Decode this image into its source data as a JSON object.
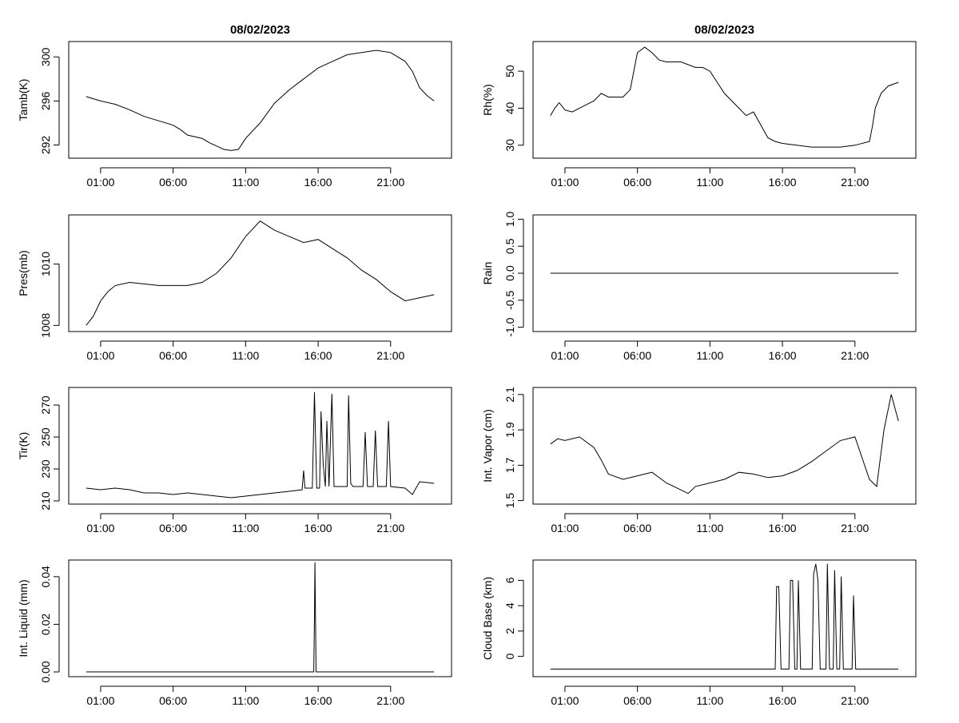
{
  "figure_title": "08/02/2023",
  "chart_data": [
    {
      "type": "line",
      "title": "08/02/2023",
      "xlabel": "",
      "ylabel": "Tamb(K)",
      "xlim": [
        -1.2,
        25.2
      ],
      "xticks": [
        1,
        6,
        11,
        16,
        21
      ],
      "xtick_labels": [
        "01:00",
        "06:00",
        "11:00",
        "16:00",
        "21:00"
      ],
      "ylim": [
        290.8,
        301.4
      ],
      "yticks": [
        292,
        296,
        300
      ],
      "ytick_labels": [
        "292",
        "296",
        "300"
      ],
      "series": [
        {
          "name": "Tamb",
          "x": [
            0,
            0.5,
            1,
            2,
            3,
            4,
            5,
            6,
            6.5,
            7,
            8,
            8.5,
            9,
            9.5,
            10,
            10.5,
            11,
            12,
            13,
            14,
            15,
            16,
            17,
            18,
            19,
            20,
            21,
            22,
            22.5,
            23,
            23.5,
            24
          ],
          "y": [
            296.4,
            296.2,
            296.0,
            295.7,
            295.2,
            294.6,
            294.2,
            293.8,
            293.4,
            292.9,
            292.6,
            292.2,
            291.9,
            291.6,
            291.5,
            291.6,
            292.6,
            294.0,
            295.8,
            297.0,
            298.0,
            299.0,
            299.6,
            300.2,
            300.4,
            300.6,
            300.4,
            299.6,
            298.7,
            297.2,
            296.5,
            296.0
          ]
        }
      ]
    },
    {
      "type": "line",
      "title": "08/02/2023",
      "xlabel": "",
      "ylabel": "Rh(%)",
      "xlim": [
        -1.2,
        25.2
      ],
      "xticks": [
        1,
        6,
        11,
        16,
        21
      ],
      "xtick_labels": [
        "01:00",
        "06:00",
        "11:00",
        "16:00",
        "21:00"
      ],
      "ylim": [
        26.5,
        58
      ],
      "yticks": [
        30,
        40,
        50
      ],
      "ytick_labels": [
        "30",
        "40",
        "50"
      ],
      "series": [
        {
          "name": "Rh",
          "x": [
            0,
            0.3,
            0.6,
            1,
            1.5,
            2,
            3,
            3.5,
            4,
            5,
            5.5,
            6,
            6.5,
            7,
            7.5,
            8,
            9,
            10,
            10.5,
            11,
            11.5,
            12,
            13,
            13.5,
            14,
            15,
            15.5,
            16,
            17,
            18,
            19,
            20,
            21,
            22,
            22.2,
            22.4,
            22.8,
            23.3,
            24
          ],
          "y": [
            38,
            40,
            41.5,
            39.5,
            39,
            40,
            42,
            44,
            43,
            43,
            45,
            55,
            56.5,
            55,
            53,
            52.5,
            52.5,
            51,
            51,
            50,
            47,
            44,
            40,
            38,
            39,
            32,
            31,
            30.5,
            30,
            29.5,
            29.5,
            29.5,
            30,
            31,
            35,
            40,
            44,
            46,
            47
          ]
        }
      ]
    },
    {
      "type": "line",
      "title": "",
      "xlabel": "",
      "ylabel": "Pres(mb)",
      "xlim": [
        -1.2,
        25.2
      ],
      "xticks": [
        1,
        6,
        11,
        16,
        21
      ],
      "xtick_labels": [
        "01:00",
        "06:00",
        "11:00",
        "16:00",
        "21:00"
      ],
      "ylim": [
        1007.8,
        1011.6
      ],
      "yticks": [
        1008,
        1010
      ],
      "ytick_labels": [
        "1008",
        "1010"
      ],
      "series": [
        {
          "name": "Pres",
          "x": [
            0,
            0.5,
            1,
            1.5,
            2,
            3,
            4,
            5,
            6,
            7,
            8,
            9,
            10,
            11,
            12,
            13,
            14,
            15,
            16,
            17,
            18,
            19,
            20,
            21,
            22,
            23,
            24
          ],
          "y": [
            1008.0,
            1008.3,
            1008.8,
            1009.1,
            1009.3,
            1009.4,
            1009.35,
            1009.3,
            1009.3,
            1009.3,
            1009.4,
            1009.7,
            1010.2,
            1010.9,
            1011.4,
            1011.1,
            1010.9,
            1010.7,
            1010.8,
            1010.5,
            1010.2,
            1009.8,
            1009.5,
            1009.1,
            1008.8,
            1008.9,
            1009.0
          ]
        }
      ]
    },
    {
      "type": "line",
      "title": "",
      "xlabel": "",
      "ylabel": "Rain",
      "xlim": [
        -1.2,
        25.2
      ],
      "xticks": [
        1,
        6,
        11,
        16,
        21
      ],
      "xtick_labels": [
        "01:00",
        "06:00",
        "11:00",
        "16:00",
        "21:00"
      ],
      "ylim": [
        -1.08,
        1.08
      ],
      "yticks": [
        -1.0,
        -0.5,
        0.0,
        0.5,
        1.0
      ],
      "ytick_labels": [
        "-1.0",
        "-0.5",
        "0.0",
        "0.5",
        "1.0"
      ],
      "series": [
        {
          "name": "Rain",
          "x": [
            0,
            24
          ],
          "y": [
            0,
            0
          ]
        }
      ]
    },
    {
      "type": "line",
      "title": "",
      "xlabel": "",
      "ylabel": "Tir(K)",
      "xlim": [
        -1.2,
        25.2
      ],
      "xticks": [
        1,
        6,
        11,
        16,
        21
      ],
      "xtick_labels": [
        "01:00",
        "06:00",
        "11:00",
        "16:00",
        "21:00"
      ],
      "ylim": [
        208,
        281
      ],
      "yticks": [
        210,
        230,
        250,
        270
      ],
      "ytick_labels": [
        "210",
        "230",
        "250",
        "270"
      ],
      "series": [
        {
          "name": "Tir",
          "x": [
            0,
            1,
            2,
            3,
            4,
            5,
            6,
            7,
            8,
            9,
            10,
            11,
            12,
            13,
            14,
            14.9,
            15.0,
            15.1,
            15.6,
            15.75,
            15.9,
            16.1,
            16.2,
            16.35,
            16.5,
            16.6,
            16.75,
            16.95,
            17.1,
            17.3,
            18.0,
            18.1,
            18.25,
            18.4,
            18.6,
            19.1,
            19.25,
            19.4,
            19.8,
            19.95,
            20.1,
            20.7,
            20.85,
            21.0,
            22.0,
            22.5,
            23,
            24
          ],
          "y": [
            218,
            217,
            218,
            217,
            215,
            215,
            214,
            215,
            214,
            213,
            212,
            213,
            214,
            215,
            216,
            217,
            229,
            218,
            218,
            278,
            218,
            218,
            266,
            233,
            219,
            260,
            219,
            277,
            219,
            219,
            219,
            276,
            221,
            219,
            219,
            219,
            253,
            219,
            219,
            254,
            219,
            219,
            260,
            219,
            218,
            214,
            222,
            221
          ]
        }
      ]
    },
    {
      "type": "line",
      "title": "",
      "xlabel": "",
      "ylabel": "Int. Vapor (cm)",
      "xlim": [
        -1.2,
        25.2
      ],
      "xticks": [
        1,
        6,
        11,
        16,
        21
      ],
      "xtick_labels": [
        "01:00",
        "06:00",
        "11:00",
        "16:00",
        "21:00"
      ],
      "ylim": [
        1.48,
        2.14
      ],
      "yticks": [
        1.5,
        1.7,
        1.9,
        2.1
      ],
      "ytick_labels": [
        "1.5",
        "1.7",
        "1.9",
        "2.1"
      ],
      "series": [
        {
          "name": "Vapor",
          "x": [
            0,
            0.5,
            1,
            2,
            3,
            3.5,
            4,
            5,
            6,
            7,
            8,
            9,
            9.5,
            10,
            11,
            12,
            13,
            14,
            15,
            16,
            17,
            18,
            19,
            20,
            21,
            22,
            22.5,
            23,
            23.5,
            24
          ],
          "y": [
            1.82,
            1.85,
            1.84,
            1.86,
            1.8,
            1.73,
            1.65,
            1.62,
            1.64,
            1.66,
            1.6,
            1.56,
            1.54,
            1.58,
            1.6,
            1.62,
            1.66,
            1.65,
            1.63,
            1.64,
            1.67,
            1.72,
            1.78,
            1.84,
            1.86,
            1.62,
            1.58,
            1.9,
            2.1,
            1.95
          ]
        }
      ]
    },
    {
      "type": "line",
      "title": "",
      "xlabel": "",
      "ylabel": "Int. Liquid (mm)",
      "xlim": [
        -1.2,
        25.2
      ],
      "xticks": [
        1,
        6,
        11,
        16,
        21
      ],
      "xtick_labels": [
        "01:00",
        "06:00",
        "11:00",
        "16:00",
        "21:00"
      ],
      "ylim": [
        -0.002,
        0.047
      ],
      "yticks": [
        0.0,
        0.02,
        0.04
      ],
      "ytick_labels": [
        "0.00",
        "0.02",
        "0.04"
      ],
      "series": [
        {
          "name": "Liquid",
          "x": [
            0,
            15.7,
            15.75,
            15.78,
            15.82,
            15.86,
            24
          ],
          "y": [
            0,
            0,
            0.023,
            0.046,
            0.023,
            0,
            0
          ]
        }
      ]
    },
    {
      "type": "line",
      "title": "",
      "xlabel": "",
      "ylabel": "Cloud Base (km)",
      "xlim": [
        -1.2,
        25.2
      ],
      "xticks": [
        1,
        6,
        11,
        16,
        21
      ],
      "xtick_labels": [
        "01:00",
        "06:00",
        "11:00",
        "16:00",
        "21:00"
      ],
      "ylim": [
        -1.6,
        7.6
      ],
      "yticks": [
        0,
        2,
        4,
        6
      ],
      "ytick_labels": [
        "0",
        "2",
        "4",
        "6"
      ],
      "series": [
        {
          "name": "CloudBase",
          "x": [
            0,
            15.5,
            15.6,
            15.75,
            15.9,
            16.45,
            16.55,
            16.7,
            16.85,
            17.0,
            17.1,
            17.25,
            18.05,
            18.15,
            18.3,
            18.45,
            18.6,
            19.0,
            19.1,
            19.25,
            19.5,
            19.6,
            19.75,
            19.95,
            20.05,
            20.2,
            20.8,
            20.9,
            21.05,
            24
          ],
          "y": [
            -1,
            -1,
            5.5,
            5.5,
            -1,
            -1,
            6.0,
            6.0,
            -1,
            -1,
            6.0,
            -1,
            -1,
            6.5,
            7.3,
            6.0,
            -1,
            -1,
            7.3,
            -1,
            -1,
            6.8,
            -1,
            -1,
            6.3,
            -1,
            -1,
            4.8,
            -1,
            -1
          ]
        }
      ]
    }
  ]
}
